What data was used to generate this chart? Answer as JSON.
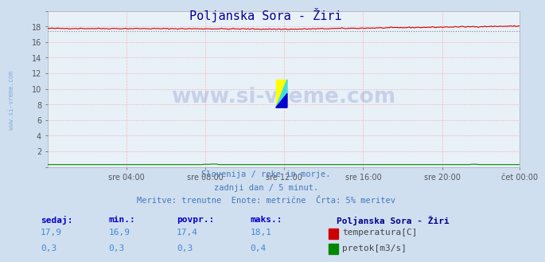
{
  "title": "Poljanska Sora - Žiri",
  "bg_color": "#d0dff0",
  "plot_bg_color": "#e8f0f8",
  "grid_color": "#ffaaaa",
  "ylim": [
    0,
    20
  ],
  "ytick_labels": [
    "",
    "2",
    "4",
    "6",
    "8",
    "10",
    "12",
    "14",
    "16",
    "18",
    ""
  ],
  "xtick_labels": [
    "sre 04:00",
    "sre 08:00",
    "sre 12:00",
    "sre 16:00",
    "sre 20:00",
    "čet 00:00"
  ],
  "n_points": 288,
  "temp_min": 16.9,
  "temp_max": 18.1,
  "temp_avg": 17.4,
  "temp_current": 17.9,
  "flow_min": 0.3,
  "flow_max": 0.4,
  "flow_avg": 0.3,
  "flow_current": 0.3,
  "temp_color": "#cc0000",
  "flow_color": "#008800",
  "avg_line_color": "#888888",
  "subtitle1": "Slovenija / reke in morje.",
  "subtitle2": "zadnji dan / 5 minut.",
  "subtitle3": "Meritve: trenutne  Enote: metrične  Črta: 5% meritev",
  "watermark": "www.si-vreme.com",
  "title_color": "#000099",
  "subtitle_color": "#4477bb",
  "table_header_color": "#0000cc",
  "table_val_color": "#4488cc",
  "legend_title": "Poljanska Sora - Žiri",
  "legend_title_color": "#000088",
  "legend_temp_label": "temperatura[C]",
  "legend_flow_label": "pretok[m3/s]",
  "side_label_color": "#6699cc",
  "side_label": "www.si-vreme.com"
}
